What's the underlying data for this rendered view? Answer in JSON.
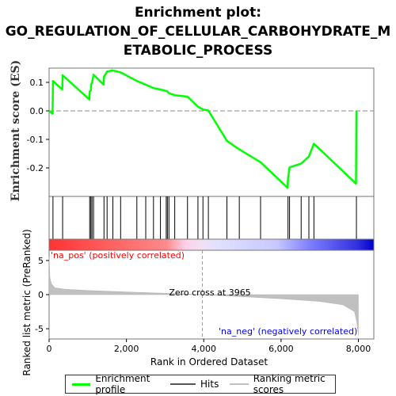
{
  "title_lines": [
    "Enrichment plot:",
    "GO_REGULATION_OF_CELLULAR_CARBOHYDRATE_M",
    "ETABOLIC_PROCESS"
  ],
  "colors": {
    "es_line": "#00ff00",
    "hits": "#000000",
    "metric": "#c0c0c0",
    "pos": "#ff0000",
    "neg": "#0000ff"
  },
  "chart_data": {
    "type": "line",
    "x_label": "Rank in Ordered Dataset",
    "x_ticks": [
      "0",
      "2,000",
      "4,000",
      "6,000",
      "8,000"
    ],
    "x_tick_values": [
      0,
      2000,
      4000,
      6000,
      8000
    ],
    "xlim": [
      0,
      8400
    ],
    "es_panel": {
      "ylabel": "Enrichment score (ES)",
      "ylim": [
        -0.3,
        0.15
      ],
      "y_ticks": [
        "0.1",
        "0.0",
        "-0.1",
        "-0.2"
      ],
      "y_tick_values": [
        0.1,
        0.0,
        -0.1,
        -0.2
      ],
      "series_name": "Enrichment profile",
      "hits": [
        100,
        350,
        1050,
        1080,
        1110,
        1150,
        1420,
        1500,
        1650,
        1850,
        2270,
        2500,
        2700,
        2880,
        3030,
        3060,
        3100,
        3250,
        3580,
        3850,
        3980,
        4120,
        4600,
        4920,
        5470,
        6180,
        6220,
        6520,
        6720,
        6850,
        7950
      ],
      "es_values": [
        0.0,
        -0.01,
        0.105,
        0.075,
        0.125,
        0.04,
        0.068,
        0.072,
        0.095,
        0.098,
        0.127,
        0.092,
        0.12,
        0.138,
        0.142,
        0.135,
        0.105,
        0.092,
        0.08,
        0.075,
        0.07,
        0.068,
        0.062,
        0.055,
        0.05,
        0.015,
        0.005,
        0.001,
        -0.105,
        -0.135,
        -0.18,
        -0.27,
        -0.238,
        -0.198,
        -0.185,
        -0.16,
        -0.115,
        -0.255,
        0.0
      ],
      "es_x": [
        0,
        90,
        100,
        340,
        350,
        1040,
        1050,
        1080,
        1090,
        1110,
        1150,
        1410,
        1420,
        1500,
        1650,
        1850,
        2270,
        2500,
        2700,
        2880,
        3030,
        3060,
        3100,
        3250,
        3580,
        3850,
        3980,
        4120,
        4600,
        4920,
        5470,
        6170,
        6180,
        6220,
        6520,
        6720,
        6850,
        7940,
        7950
      ]
    },
    "metric_panel": {
      "ylabel": "Ranked list metric (PreRanked)",
      "ylim": [
        -6.5,
        6.5
      ],
      "y_ticks": [
        "5",
        "0",
        "-5"
      ],
      "y_tick_values": [
        5,
        0,
        -5
      ],
      "series_name": "Ranking metric scores",
      "metric_x": [
        0,
        20,
        60,
        150,
        400,
        1000,
        2000,
        3000,
        3965,
        5000,
        6000,
        7000,
        7600,
        7900,
        7960,
        8000
      ],
      "metric_y": [
        5.5,
        2.5,
        1.6,
        1.0,
        0.8,
        0.6,
        0.4,
        0.2,
        0.0,
        -0.3,
        -0.6,
        -1.0,
        -1.5,
        -2.5,
        -4.0,
        -6.0
      ],
      "zero_cross_label": "Zero cross at 3965",
      "zero_cross": 3965,
      "pos_label": "'na_pos' (positively correlated)",
      "neg_label": "'na_neg' (negatively correlated)"
    },
    "legend": [
      "Enrichment profile",
      "Hits",
      "Ranking metric scores"
    ]
  }
}
